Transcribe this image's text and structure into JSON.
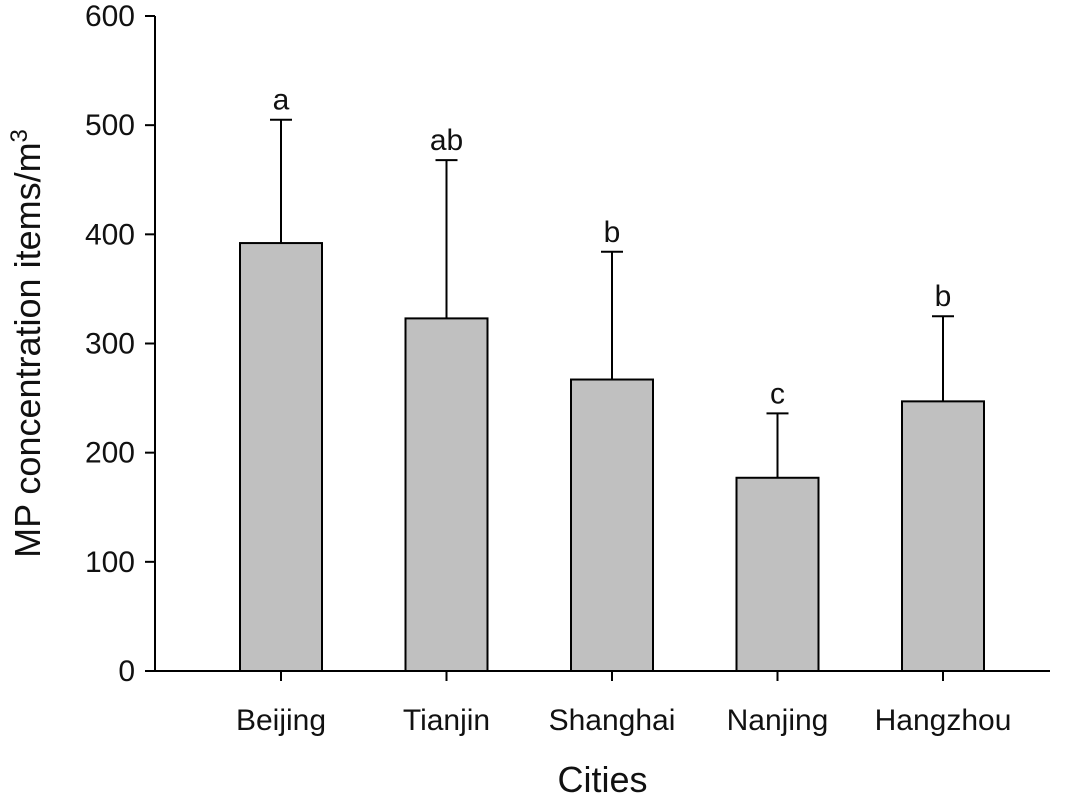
{
  "chart_data": {
    "type": "bar",
    "title": "",
    "xlabel": "Cities",
    "ylabel": "MP concentration items/m",
    "ylabel_superscript": "3",
    "categories": [
      "Beijing",
      "Tianjin",
      "Shanghai",
      "Nanjing",
      "Hangzhou"
    ],
    "values": [
      392,
      323,
      267,
      177,
      247
    ],
    "error_upper": [
      505,
      468,
      384,
      236,
      325
    ],
    "significance_labels": [
      "a",
      "ab",
      "b",
      "c",
      "b"
    ],
    "ylim": [
      0,
      600
    ],
    "yticks": [
      "0",
      "100",
      "200",
      "300",
      "400",
      "500",
      "600"
    ],
    "grid": false,
    "legend": "none",
    "colors": {
      "bar_fill": "#c0c0c0",
      "bar_stroke": "#000000",
      "axis": "#000000"
    }
  }
}
